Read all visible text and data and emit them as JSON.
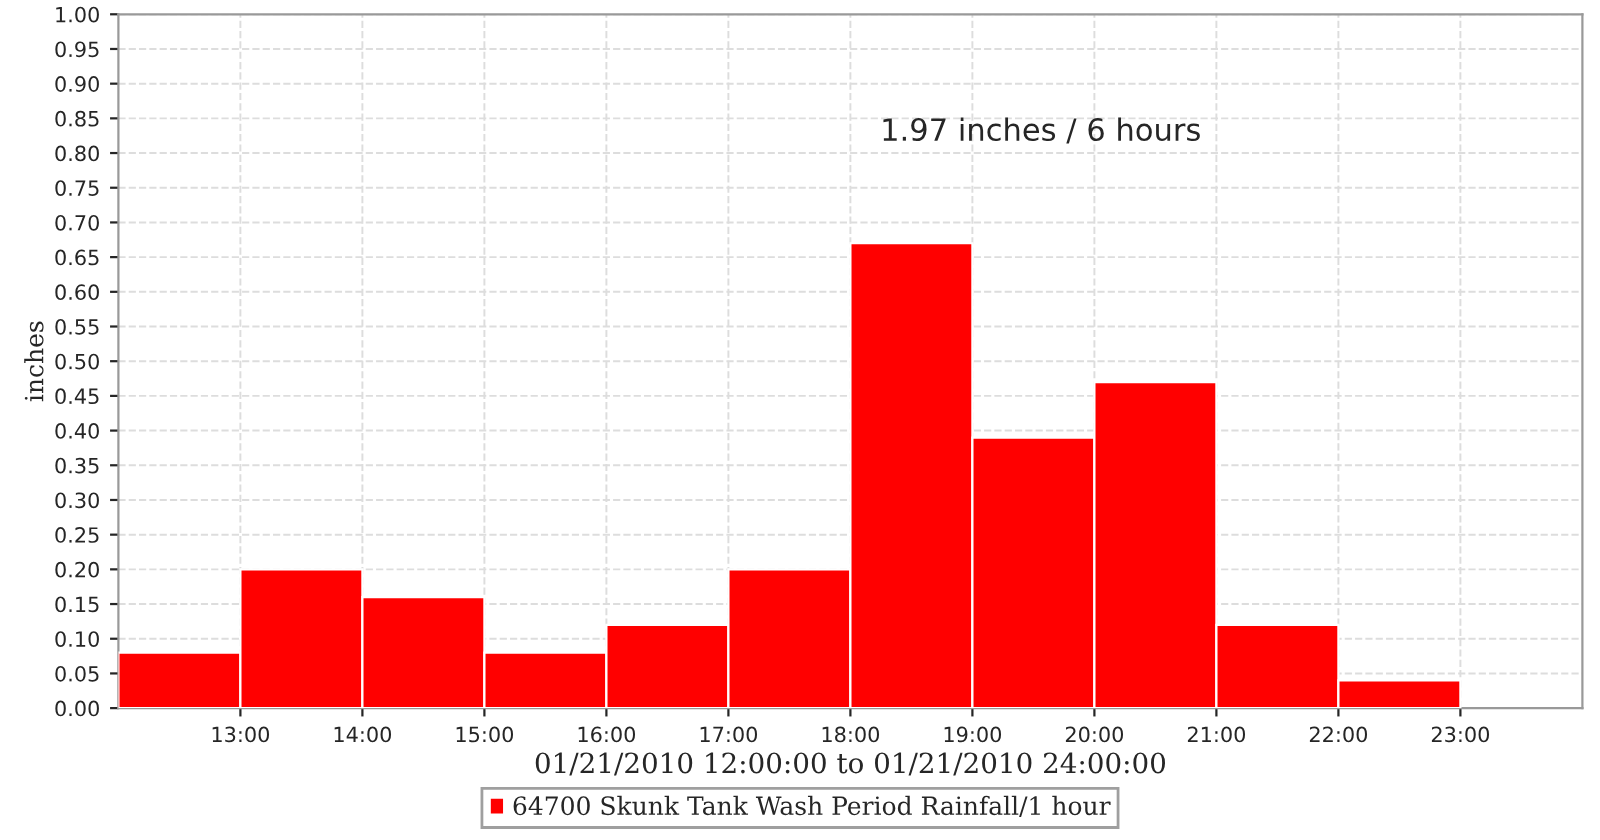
{
  "chart_data": {
    "type": "histogram",
    "xlabel": "01/21/2010 12:00:00 to 01/21/2010 24:00:00",
    "ylabel": "inches",
    "annotations": [
      "1.97 inches / 6 hours"
    ],
    "bins": [
      12,
      13,
      14,
      15,
      16,
      17,
      18,
      19,
      20,
      21,
      22,
      23
    ],
    "series": [
      {
        "name": "64700 Skunk Tank Wash Period Rainfall/1 hour",
        "color": "#ff0000",
        "values": [
          0.08,
          0.2,
          0.16,
          0.08,
          0.12,
          0.2,
          0.67,
          0.39,
          0.47,
          0.12,
          0.04
        ]
      }
    ],
    "xlim": [
      12,
      24
    ],
    "xticks": [
      {
        "value": 13,
        "label": "13:00"
      },
      {
        "value": 14,
        "label": "14:00"
      },
      {
        "value": 15,
        "label": "15:00"
      },
      {
        "value": 16,
        "label": "16:00"
      },
      {
        "value": 17,
        "label": "17:00"
      },
      {
        "value": 18,
        "label": "18:00"
      },
      {
        "value": 19,
        "label": "19:00"
      },
      {
        "value": 20,
        "label": "20:00"
      },
      {
        "value": 21,
        "label": "21:00"
      },
      {
        "value": 22,
        "label": "22:00"
      },
      {
        "value": 23,
        "label": "23:00"
      }
    ],
    "ylim": [
      0,
      1
    ],
    "yticks": [
      {
        "value": 0,
        "label": "0.00"
      },
      {
        "value": 0.05,
        "label": "0.05"
      },
      {
        "value": 0.1,
        "label": "0.10"
      },
      {
        "value": 0.15,
        "label": "0.15"
      },
      {
        "value": 0.2,
        "label": "0.20"
      },
      {
        "value": 0.25,
        "label": "0.25"
      },
      {
        "value": 0.3,
        "label": "0.30"
      },
      {
        "value": 0.35,
        "label": "0.35"
      },
      {
        "value": 0.4,
        "label": "0.40"
      },
      {
        "value": 0.45,
        "label": "0.45"
      },
      {
        "value": 0.5,
        "label": "0.50"
      },
      {
        "value": 0.55,
        "label": "0.55"
      },
      {
        "value": 0.6,
        "label": "0.60"
      },
      {
        "value": 0.65,
        "label": "0.65"
      },
      {
        "value": 0.7,
        "label": "0.70"
      },
      {
        "value": 0.75,
        "label": "0.75"
      },
      {
        "value": 0.8,
        "label": "0.80"
      },
      {
        "value": 0.85,
        "label": "0.85"
      },
      {
        "value": 0.9,
        "label": "0.90"
      },
      {
        "value": 0.95,
        "label": "0.95"
      },
      {
        "value": 1.0,
        "label": "1.00"
      }
    ],
    "grid": true,
    "legend": "bottom"
  }
}
